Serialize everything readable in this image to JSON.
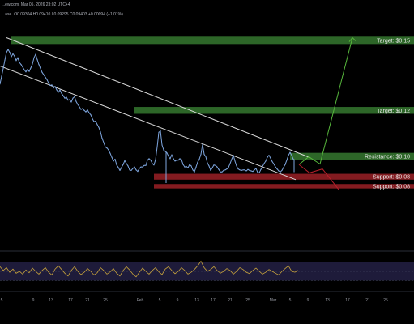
{
  "header": {
    "source_line": "...ew.com, Mar 05, 2026 23:02 UTC+4",
    "symbol_fragment": "...ase",
    "ohlc_line": "O0.09304 H0.09410 L0.09295 C0.09403 +0.00094 (+1.01%)"
  },
  "colors": {
    "background": "#000000",
    "price_line": "#7fa7e0",
    "channel_line": "#d9d9d9",
    "target_zone": "#2f6b2a",
    "resistance_zone": "#2f6b2a",
    "support_zone": "#8a1c22",
    "projection_up": "#57b83c",
    "projection_down": "#b8202b",
    "rsi_line": "#c8a33c",
    "rsi_band": "#1e1b3a"
  },
  "chart_data": [
    {
      "type": "line",
      "title": "",
      "series": [
        {
          "name": "",
          "x": [
            0,
            2,
            4,
            6,
            8,
            10,
            12,
            14,
            16,
            18,
            20,
            22,
            24,
            26,
            28,
            30,
            32,
            34,
            36,
            38,
            40,
            42,
            44,
            46,
            48,
            50,
            52,
            54,
            56,
            58,
            60,
            62,
            64,
            66,
            68,
            70,
            72,
            74,
            76,
            78,
            80,
            82,
            84,
            86,
            88,
            90,
            92,
            94,
            96,
            98,
            100,
            102,
            104,
            106,
            108,
            110,
            112,
            114,
            116,
            118,
            120,
            122,
            124,
            126,
            128,
            130,
            132,
            134,
            136,
            138,
            140,
            142,
            144,
            146,
            148,
            150,
            152,
            154,
            156,
            158,
            160,
            162,
            164,
            166,
            168,
            170,
            172,
            174,
            176,
            178,
            180,
            182,
            184,
            186,
            188,
            190,
            192,
            194,
            196,
            198,
            200,
            202,
            204,
            206,
            208,
            210,
            212,
            214,
            216,
            218,
            220,
            222,
            224,
            226,
            228,
            230,
            232,
            234,
            236,
            238,
            240,
            242,
            244,
            246,
            248,
            250,
            252,
            254,
            256,
            258,
            260,
            262,
            264,
            266,
            268,
            270,
            272,
            274,
            276,
            278,
            280,
            282,
            284,
            286,
            288,
            290,
            292,
            294,
            296,
            298,
            300,
            302,
            304,
            306,
            308,
            310,
            312,
            314,
            316,
            318,
            320,
            322,
            324,
            326,
            328,
            330,
            332,
            334,
            336,
            338,
            340,
            342,
            344,
            346,
            348,
            350,
            352,
            354,
            356,
            358,
            360,
            362
          ],
          "values": [
            0.1302,
            0.1334,
            0.1366,
            0.14,
            0.1432,
            0.1444,
            0.1432,
            0.1414,
            0.1426,
            0.1416,
            0.1398,
            0.141,
            0.139,
            0.1382,
            0.1372,
            0.136,
            0.1352,
            0.1362,
            0.1354,
            0.1368,
            0.1384,
            0.141,
            0.1424,
            0.1402,
            0.1382,
            0.1366,
            0.135,
            0.134,
            0.133,
            0.132,
            0.1306,
            0.1296,
            0.1298,
            0.1286,
            0.1292,
            0.1278,
            0.1268,
            0.1278,
            0.1264,
            0.1254,
            0.1244,
            0.1248,
            0.1236,
            0.1238,
            0.1228,
            0.1244,
            0.125,
            0.123,
            0.1218,
            0.1208,
            0.1198,
            0.1202,
            0.1194,
            0.1188,
            0.1196,
            0.1184,
            0.1176,
            0.116,
            0.1148,
            0.115,
            0.1136,
            0.1124,
            0.1106,
            0.108,
            0.1062,
            0.1044,
            0.104,
            0.1032,
            0.1018,
            0.1002,
            0.0986,
            0.0994,
            0.097,
            0.096,
            0.0948,
            0.096,
            0.0972,
            0.0988,
            0.0976,
            0.0966,
            0.095,
            0.0948,
            0.0956,
            0.0962,
            0.095,
            0.0944,
            0.0956,
            0.0962,
            0.0962,
            0.0968,
            0.0968,
            0.099,
            0.0996,
            0.099,
            0.0976,
            0.097,
            0.0992,
            0.1044,
            0.1104,
            0.111,
            0.1052,
            0.1032,
            0.1026,
            0.102,
            0.1006,
            0.0996,
            0.1012,
            0.0996,
            0.0986,
            0.099,
            0.099,
            0.0996,
            0.0992,
            0.0972,
            0.0962,
            0.0964,
            0.0958,
            0.0972,
            0.0966,
            0.095,
            0.0942,
            0.0962,
            0.0982,
            0.0994,
            0.1014,
            0.1054,
            0.1014,
            0.1004,
            0.0978,
            0.0966,
            0.0948,
            0.0958,
            0.097,
            0.0968,
            0.0962,
            0.0952,
            0.0942,
            0.0942,
            0.0948,
            0.095,
            0.0954,
            0.096,
            0.0976,
            0.0994,
            0.101,
            0.0986,
            0.0966,
            0.0954,
            0.095,
            0.0948,
            0.095,
            0.095,
            0.0946,
            0.0952,
            0.0948,
            0.0946,
            0.0944,
            0.095,
            0.0956,
            0.094,
            0.0938,
            0.0952,
            0.0964,
            0.0976,
            0.0986,
            0.1002,
            0.101,
            0.0998,
            0.0984,
            0.0974,
            0.0962,
            0.0954,
            0.0946,
            0.0942,
            0.0948,
            0.096,
            0.0972,
            0.099,
            0.101,
            0.1022,
            0.101,
            0.0994
          ]
        }
      ],
      "ylim": [
        0.075,
        0.158
      ],
      "xlim": [
        0,
        511
      ],
      "wick_low": [
        {
          "x": 205,
          "low": 0.0896
        },
        {
          "x": 363,
          "low": 0.0941
        }
      ],
      "channel": {
        "upper": {
          "x": [
            8,
            383
          ],
          "y": [
            0.1492,
            0.1
          ]
        },
        "lower": {
          "x": [
            0,
            365
          ],
          "y": [
            0.1376,
            0.091
          ]
        }
      },
      "zones": [
        {
          "label": "Target: $0.15",
          "kind": "target",
          "low": 0.1466,
          "high": 0.1496,
          "x_start": 14
        },
        {
          "label": "Target: $0.12",
          "kind": "target",
          "low": 0.118,
          "high": 0.1208,
          "x_start": 165
        },
        {
          "label": "Resistance: $0.10",
          "kind": "resistance",
          "low": 0.0992,
          "high": 0.102,
          "x_start": 358
        },
        {
          "label": "Support: $0.08",
          "kind": "support",
          "low": 0.091,
          "high": 0.0934,
          "x_start": 190
        },
        {
          "label": "Support: $0.08",
          "kind": "support",
          "low": 0.0874,
          "high": 0.0892,
          "x_start": 190
        }
      ],
      "projection_up": {
        "x": [
          369,
          381,
          395,
          435
        ],
        "y": [
          0.0972,
          0.1004,
          0.0974,
          0.1492
        ]
      },
      "projection_down": {
        "x": [
          369,
          382,
          398,
          418
        ],
        "y": [
          0.0972,
          0.0938,
          0.0954,
          0.087
        ]
      },
      "x_tick_labels": [
        "5",
        "9",
        "13",
        "17",
        "21",
        "25",
        "Feb",
        "5",
        "9",
        "13",
        "17",
        "21",
        "25",
        "Mar",
        "5",
        "9",
        "13",
        "17",
        "21",
        "25"
      ],
      "grid": false
    },
    {
      "type": "line",
      "title": "",
      "series": [
        {
          "name": "",
          "x": [
            0,
            4,
            8,
            12,
            16,
            20,
            24,
            28,
            32,
            36,
            40,
            44,
            48,
            52,
            56,
            60,
            64,
            68,
            72,
            76,
            80,
            84,
            88,
            92,
            96,
            100,
            104,
            108,
            112,
            116,
            120,
            124,
            128,
            132,
            136,
            140,
            144,
            148,
            152,
            156,
            160,
            164,
            168,
            172,
            176,
            180,
            184,
            188,
            192,
            196,
            200,
            204,
            208,
            212,
            216,
            220,
            224,
            228,
            232,
            236,
            240,
            244,
            248,
            252,
            256,
            260,
            264,
            268,
            272,
            276,
            280,
            284,
            288,
            292,
            296,
            300,
            304,
            308,
            312,
            316,
            320,
            324,
            328,
            332,
            336,
            340,
            344,
            348,
            352,
            356,
            360,
            364,
            368
          ],
          "values": [
            60,
            52,
            58,
            48,
            55,
            46,
            50,
            44,
            53,
            47,
            57,
            50,
            44,
            52,
            58,
            48,
            42,
            55,
            62,
            54,
            46,
            40,
            52,
            60,
            50,
            43,
            48,
            56,
            50,
            42,
            47,
            58,
            52,
            44,
            49,
            56,
            46,
            40,
            52,
            60,
            53,
            44,
            38,
            48,
            57,
            50,
            44,
            52,
            58,
            49,
            43,
            55,
            60,
            52,
            45,
            50,
            58,
            52,
            44,
            48,
            54,
            62,
            72,
            58,
            50,
            54,
            60,
            52,
            46,
            50,
            56,
            52,
            44,
            50,
            58,
            54,
            48,
            45,
            52,
            57,
            50,
            44,
            48,
            54,
            50,
            46,
            42,
            50,
            56,
            62,
            50,
            48,
            52
          ]
        }
      ],
      "ylim": [
        20,
        80
      ]
    }
  ]
}
